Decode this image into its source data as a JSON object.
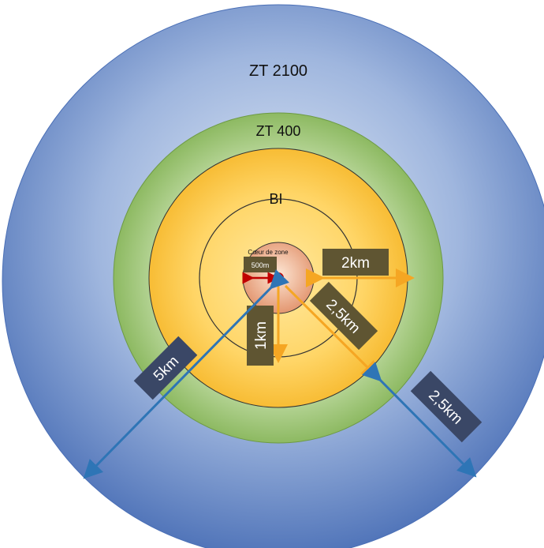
{
  "zones": {
    "zt2100": {
      "label": "ZT 2100",
      "color_center": "#dfe8f5",
      "color_edge": "#4e72b8"
    },
    "zt400": {
      "label": "ZT 400",
      "color": "#7fb04f",
      "color_light": "#b8d89a"
    },
    "bi": {
      "label": "BI",
      "color_center": "#ffe79a",
      "color_edge": "#f6b92a"
    },
    "coeur": {
      "label": "Cœur de zone",
      "color_center": "#fbe2cf",
      "color_edge": "#e8a07a"
    }
  },
  "center_point": {
    "color": "#c00000"
  },
  "measurements": {
    "m500": {
      "label": "500m",
      "arrow_color": "#c00000"
    },
    "m1km": {
      "label": "1km",
      "arrow_color": "#f5a623"
    },
    "m2km": {
      "label": "2km",
      "arrow_color": "#f5a623"
    },
    "m25_inner": {
      "label": "2,5km",
      "arrow_color": "#f5a623"
    },
    "m5km": {
      "label": "5km",
      "arrow_color": "#2e75b6"
    },
    "m25_outer": {
      "label": "2,5km",
      "arrow_color": "#2e75b6"
    }
  },
  "colors": {
    "tag_olive": "#5f5532",
    "tag_navy": "#3a4766",
    "ring_line": "#333333"
  }
}
